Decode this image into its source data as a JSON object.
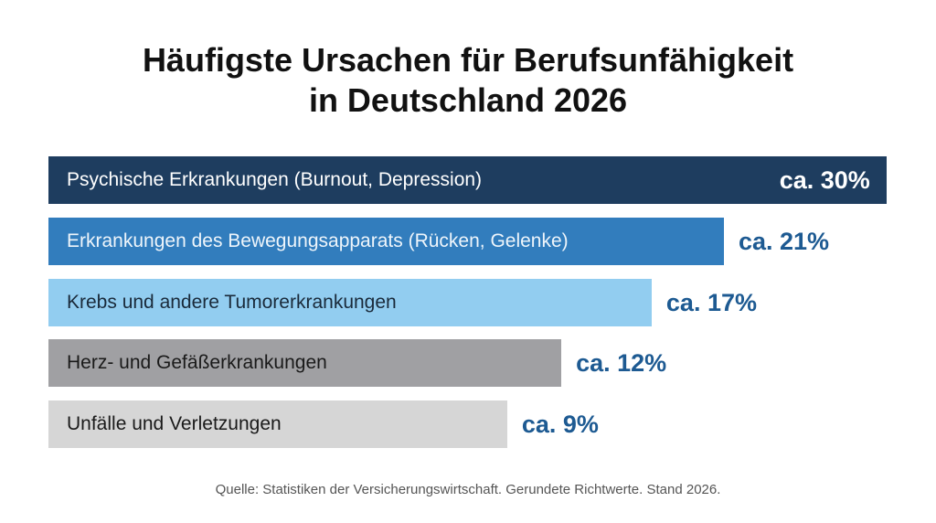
{
  "chart_data": {
    "type": "bar",
    "orientation": "horizontal",
    "title": "Häufigste Ursachen für Berufsunfähigkeit in Deutschland 2026",
    "title_lines": [
      "Häufigste Ursachen für Berufsunfähigkeit",
      "in Deutschland 2026"
    ],
    "categories": [
      "Psychische Erkrankungen (Burnout, Depression)",
      "Erkrankungen des Bewegungsapparats (Rücken, Gelenke)",
      "Krebs und andere Tumorerkrankungen",
      "Herz- und Gefäßerkrankungen",
      "Unfälle und Verletzungen"
    ],
    "values": [
      30,
      21,
      17,
      12,
      9
    ],
    "value_labels": [
      "ca. 30%",
      "ca. 21%",
      "ca. 17%",
      "ca. 12%",
      "ca. 9%"
    ],
    "unit": "%",
    "colors": [
      "#1e3d5f",
      "#327dbd",
      "#92cdf0",
      "#a0a0a3",
      "#d6d6d6"
    ],
    "label_colors": [
      "#ffffff",
      "#eef5fb",
      "#1a2a3a",
      "#1a1a1a",
      "#1a1a1a"
    ],
    "value_label_color": "#1d5a92",
    "grid": false,
    "legend": "none",
    "source": "Quelle: Statistiken der Versicherungswirtschaft. Gerundete Richtwerte. Stand 2026."
  }
}
